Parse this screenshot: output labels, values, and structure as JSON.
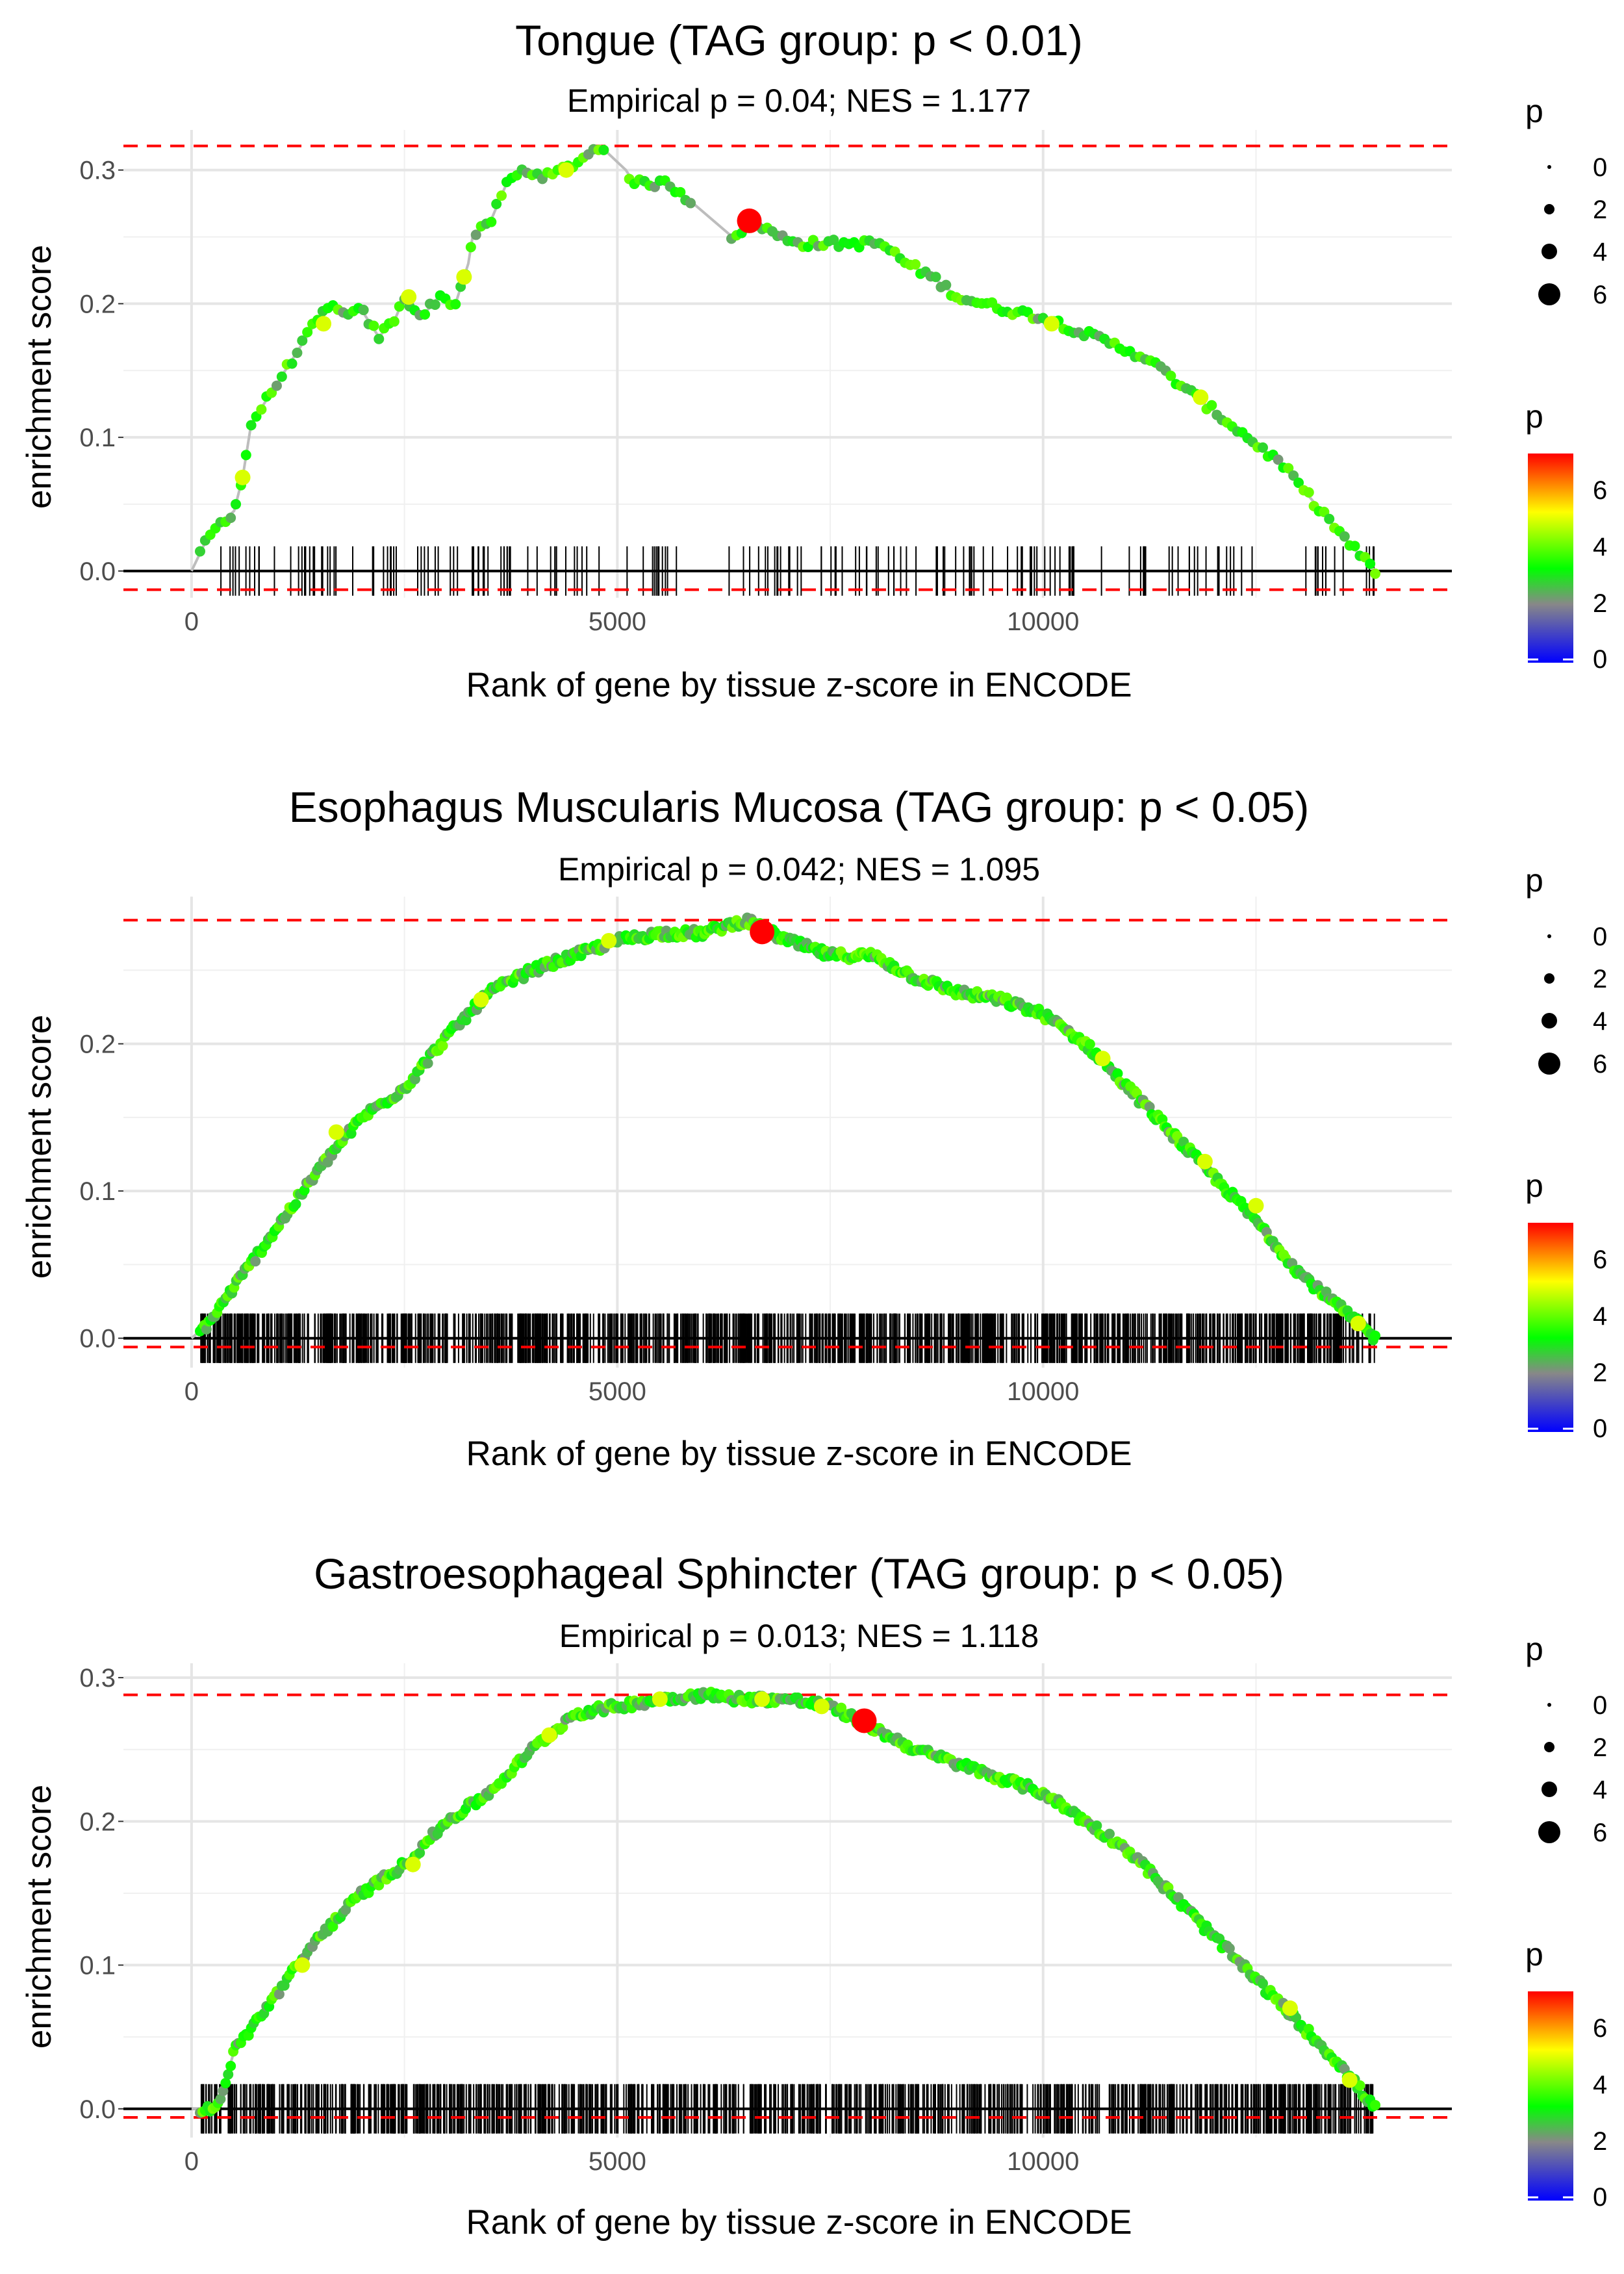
{
  "figure": {
    "x_axis_title": "Rank of gene by tissue z-score in ENCODE",
    "y_axis_title": "enrichment score",
    "legend_size_title": "p",
    "legend_color_title": "p",
    "legend_size_breaks": [
      "0",
      "2",
      "4",
      "6"
    ],
    "legend_color_breaks": [
      "0",
      "2",
      "4",
      "6"
    ],
    "color_scale": [
      "#0000ff",
      "#888888",
      "#00ff00",
      "#ffff00",
      "#ff0000"
    ],
    "reference_line_color": "#ff0000",
    "curve_color": "#bdbdbd",
    "peak_marker_color": "#ff0000"
  },
  "chart_data": [
    {
      "type": "line",
      "title": "Tongue (TAG group: p < 0.01)",
      "subtitle": "Empirical p = 0.04; NES = 1.177",
      "xlabel": "Rank of gene by tissue z-score in ENCODE",
      "ylabel": "enrichment score",
      "xlim": [
        -800,
        14800
      ],
      "ylim": [
        -0.02,
        0.33
      ],
      "x_ticks": [
        0,
        5000,
        10000
      ],
      "y_ticks": [
        0.0,
        0.1,
        0.2,
        0.3
      ],
      "max_line": 0.318,
      "min_line": -0.014,
      "max_rank": 13900,
      "peak": {
        "x": 6550,
        "y": 0.262
      },
      "hit_count": 180,
      "hit_clusters": [
        [
          150,
          1900
        ],
        [
          2000,
          2800
        ],
        [
          2850,
          4900
        ],
        [
          5100,
          5800
        ],
        [
          6300,
          7200
        ],
        [
          7300,
          8400
        ],
        [
          8500,
          9300
        ],
        [
          9400,
          10800
        ],
        [
          11000,
          12500
        ],
        [
          13000,
          13900
        ]
      ],
      "curve_points": [
        [
          0,
          0.0
        ],
        [
          150,
          0.02
        ],
        [
          250,
          0.03
        ],
        [
          500,
          0.045
        ],
        [
          600,
          0.07
        ],
        [
          700,
          0.11
        ],
        [
          900,
          0.13
        ],
        [
          1100,
          0.15
        ],
        [
          1300,
          0.17
        ],
        [
          1500,
          0.19
        ],
        [
          1700,
          0.2
        ],
        [
          1800,
          0.19
        ],
        [
          2000,
          0.195
        ],
        [
          2200,
          0.175
        ],
        [
          2400,
          0.19
        ],
        [
          2500,
          0.205
        ],
        [
          2700,
          0.19
        ],
        [
          2900,
          0.205
        ],
        [
          3100,
          0.2
        ],
        [
          3250,
          0.23
        ],
        [
          3300,
          0.25
        ],
        [
          3500,
          0.26
        ],
        [
          3700,
          0.29
        ],
        [
          3900,
          0.3
        ],
        [
          4200,
          0.295
        ],
        [
          4500,
          0.305
        ],
        [
          4800,
          0.318
        ],
        [
          5100,
          0.3
        ],
        [
          5200,
          0.29
        ],
        [
          5600,
          0.29
        ],
        [
          5800,
          0.28
        ],
        [
          6350,
          0.25
        ],
        [
          6450,
          0.255
        ],
        [
          6650,
          0.26
        ],
        [
          6900,
          0.25
        ],
        [
          7200,
          0.245
        ],
        [
          7500,
          0.245
        ],
        [
          7800,
          0.245
        ],
        [
          8100,
          0.245
        ],
        [
          8400,
          0.23
        ],
        [
          8700,
          0.22
        ],
        [
          9000,
          0.205
        ],
        [
          9300,
          0.2
        ],
        [
          9600,
          0.195
        ],
        [
          10000,
          0.19
        ],
        [
          10400,
          0.18
        ],
        [
          10800,
          0.17
        ],
        [
          11200,
          0.16
        ],
        [
          11600,
          0.14
        ],
        [
          12000,
          0.12
        ],
        [
          12400,
          0.1
        ],
        [
          12800,
          0.08
        ],
        [
          13200,
          0.05
        ],
        [
          13600,
          0.02
        ],
        [
          13900,
          0.0
        ]
      ],
      "point_step": 60,
      "highlight_points": [
        [
          600,
          0.07
        ],
        [
          1550,
          0.185
        ],
        [
          2550,
          0.205
        ],
        [
          3200,
          0.22
        ],
        [
          4400,
          0.3
        ],
        [
          10100,
          0.185
        ],
        [
          11850,
          0.13
        ]
      ]
    },
    {
      "type": "line",
      "title": "Esophagus Muscularis Mucosa (TAG group: p < 0.05)",
      "subtitle": "Empirical p = 0.042; NES = 1.095",
      "xlabel": "Rank of gene by tissue z-score in ENCODE",
      "ylabel": "enrichment score",
      "xlim": [
        -800,
        14800
      ],
      "ylim": [
        -0.02,
        0.3
      ],
      "x_ticks": [
        0,
        5000,
        10000
      ],
      "y_ticks": [
        0.0,
        0.1,
        0.2
      ],
      "max_line": 0.284,
      "min_line": -0.006,
      "max_rank": 13900,
      "peak": {
        "x": 6700,
        "y": 0.276
      },
      "hit_count": 1200,
      "hit_clusters": [
        [
          100,
          13900
        ]
      ],
      "curve_points": [
        [
          0,
          0.0
        ],
        [
          200,
          0.01
        ],
        [
          500,
          0.035
        ],
        [
          1000,
          0.075
        ],
        [
          1500,
          0.115
        ],
        [
          2000,
          0.15
        ],
        [
          2500,
          0.17
        ],
        [
          3000,
          0.205
        ],
        [
          3500,
          0.235
        ],
        [
          4000,
          0.25
        ],
        [
          4500,
          0.26
        ],
        [
          5000,
          0.27
        ],
        [
          5500,
          0.275
        ],
        [
          6000,
          0.275
        ],
        [
          6500,
          0.284
        ],
        [
          7000,
          0.27
        ],
        [
          7500,
          0.26
        ],
        [
          8000,
          0.26
        ],
        [
          8500,
          0.245
        ],
        [
          9000,
          0.235
        ],
        [
          9500,
          0.23
        ],
        [
          10000,
          0.22
        ],
        [
          10500,
          0.2
        ],
        [
          11000,
          0.17
        ],
        [
          11500,
          0.14
        ],
        [
          12000,
          0.11
        ],
        [
          12500,
          0.08
        ],
        [
          13000,
          0.045
        ],
        [
          13500,
          0.02
        ],
        [
          13900,
          0.0
        ]
      ],
      "point_step": 25,
      "highlight_points": [
        [
          1700,
          0.14
        ],
        [
          3400,
          0.23
        ],
        [
          4900,
          0.27
        ],
        [
          10700,
          0.19
        ],
        [
          11900,
          0.12
        ],
        [
          12500,
          0.09
        ],
        [
          13700,
          0.01
        ]
      ]
    },
    {
      "type": "line",
      "title": "Gastroesophageal Sphincter (TAG group: p < 0.05)",
      "subtitle": "Empirical p = 0.013; NES = 1.118",
      "xlabel": "Rank of gene by tissue z-score in ENCODE",
      "ylabel": "enrichment score",
      "xlim": [
        -800,
        14800
      ],
      "ylim": [
        -0.02,
        0.31
      ],
      "x_ticks": [
        0,
        5000,
        10000
      ],
      "y_ticks": [
        0.0,
        0.1,
        0.2,
        0.3
      ],
      "max_line": 0.288,
      "min_line": -0.006,
      "max_rank": 13900,
      "peak": {
        "x": 7900,
        "y": 0.27
      },
      "hit_count": 1000,
      "hit_clusters": [
        [
          100,
          13900
        ]
      ],
      "curve_points": [
        [
          0,
          0.0
        ],
        [
          300,
          0.0
        ],
        [
          500,
          0.04
        ],
        [
          1000,
          0.08
        ],
        [
          1500,
          0.12
        ],
        [
          2000,
          0.15
        ],
        [
          2500,
          0.17
        ],
        [
          3000,
          0.2
        ],
        [
          3500,
          0.22
        ],
        [
          4000,
          0.25
        ],
        [
          4500,
          0.275
        ],
        [
          5000,
          0.28
        ],
        [
          5500,
          0.285
        ],
        [
          6000,
          0.288
        ],
        [
          6500,
          0.285
        ],
        [
          7000,
          0.285
        ],
        [
          7500,
          0.28
        ],
        [
          8000,
          0.265
        ],
        [
          8500,
          0.25
        ],
        [
          9000,
          0.24
        ],
        [
          9500,
          0.23
        ],
        [
          10000,
          0.22
        ],
        [
          10500,
          0.2
        ],
        [
          11000,
          0.18
        ],
        [
          11500,
          0.15
        ],
        [
          12000,
          0.12
        ],
        [
          12500,
          0.09
        ],
        [
          13000,
          0.06
        ],
        [
          13500,
          0.03
        ],
        [
          13900,
          0.0
        ]
      ],
      "point_step": 30,
      "highlight_points": [
        [
          1300,
          0.1
        ],
        [
          2600,
          0.17
        ],
        [
          4200,
          0.26
        ],
        [
          5500,
          0.285
        ],
        [
          6700,
          0.285
        ],
        [
          7400,
          0.28
        ],
        [
          12900,
          0.07
        ],
        [
          13600,
          0.02
        ]
      ]
    }
  ]
}
